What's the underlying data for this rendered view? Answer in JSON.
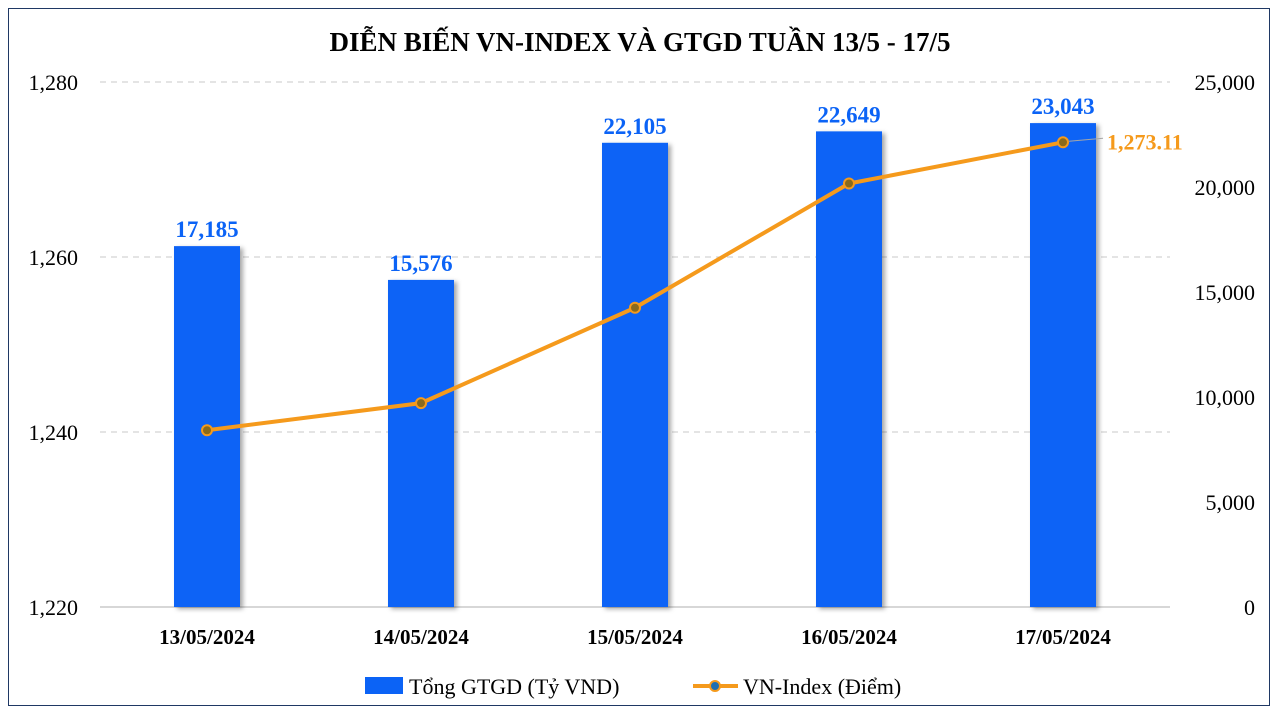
{
  "chart_data": {
    "type": "bar",
    "title": "DIỄN BIẾN VN-INDEX VÀ GTGD TUẦN 13/5 -  17/5",
    "categories": [
      "13/05/2024",
      "14/05/2024",
      "15/05/2024",
      "16/05/2024",
      "17/05/2024"
    ],
    "series": [
      {
        "name": "Tổng GTGD (Tỷ VND)",
        "type": "bar",
        "axis": "right",
        "color": "#0b63f6",
        "values": [
          17185,
          15576,
          22105,
          22649,
          23043
        ],
        "labels": [
          "17,185",
          "15,576",
          "22,105",
          "22,649",
          "23,043"
        ]
      },
      {
        "name": "VN-Index (Điểm)",
        "type": "line",
        "axis": "left",
        "color": "#f59a1c",
        "values": [
          1240.2,
          1243.3,
          1254.2,
          1268.4,
          1273.11
        ],
        "end_label": "1,273.11"
      }
    ],
    "y_left": {
      "min": 1220,
      "max": 1280,
      "ticks": [
        "1,220",
        "1,240",
        "1,260",
        "1,280"
      ],
      "tick_values": [
        1220,
        1240,
        1260,
        1280
      ]
    },
    "y_right": {
      "min": 0,
      "max": 25000,
      "ticks": [
        "0",
        "5,000",
        "10,000",
        "15,000",
        "20,000",
        "25,000"
      ],
      "tick_values": [
        0,
        5000,
        10000,
        15000,
        20000,
        25000
      ]
    },
    "grid": true,
    "legend": "bottom",
    "label_color": "#0b63f6"
  }
}
